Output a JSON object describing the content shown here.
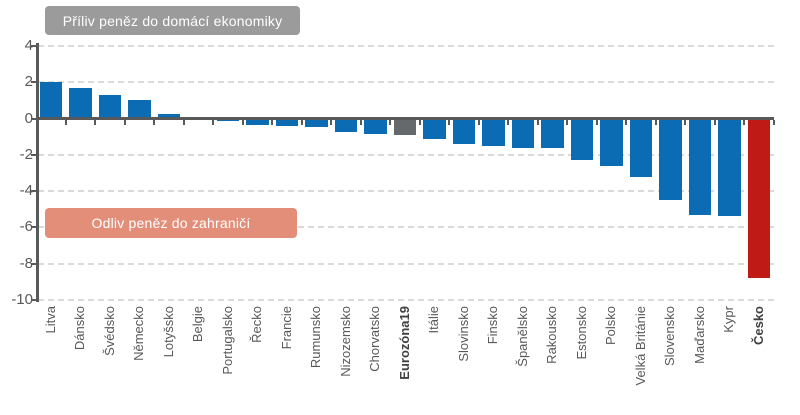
{
  "annotations": {
    "inflow_label": "Příliv peněz do domácí ekonomiky",
    "outflow_label": "Odliv peněz do zahraničí"
  },
  "colors": {
    "bar_blue": "#0b6bb3",
    "bar_gray": "#66696b",
    "bar_red": "#bf1a15",
    "inflow_box_bg": "#9b9b9b",
    "outflow_box_bg": "#e28e79",
    "axis": "#58595b",
    "gridline": "#dadada",
    "label_text": "#58595b",
    "label_text_bold": "#3f4042"
  },
  "chart_data": {
    "type": "bar",
    "title": "",
    "xlabel": "",
    "ylabel": "",
    "categories": [
      "Litva",
      "Dánsko",
      "Švédsko",
      "Německo",
      "Lotyšsko",
      "Belgie",
      "Portugalsko",
      "Řecko",
      "Francie",
      "Rumunsko",
      "Nizozemsko",
      "Chorvatsko",
      "Eurozóna19",
      "Itálie",
      "Slovinsko",
      "Finsko",
      "Španělsko",
      "Rakousko",
      "Estonsko",
      "Polsko",
      "Velká Británie",
      "Slovensko",
      "Maďarsko",
      "Kypr",
      "Česko"
    ],
    "values": [
      2.0,
      1.7,
      1.3,
      1.05,
      0.25,
      -0.1,
      -0.15,
      -0.35,
      -0.4,
      -0.45,
      -0.75,
      -0.85,
      -0.9,
      -1.15,
      -1.4,
      -1.5,
      -1.6,
      -1.65,
      -2.3,
      -2.6,
      -3.2,
      -4.5,
      -5.3,
      -5.35,
      -8.8
    ],
    "bar_colors": [
      "blue",
      "blue",
      "blue",
      "blue",
      "blue",
      "blue",
      "blue",
      "blue",
      "blue",
      "blue",
      "blue",
      "blue",
      "gray",
      "blue",
      "blue",
      "blue",
      "blue",
      "blue",
      "blue",
      "blue",
      "blue",
      "blue",
      "blue",
      "blue",
      "red"
    ],
    "bold_categories": [
      "Eurozóna19",
      "Česko"
    ],
    "yticks": [
      4,
      2,
      0,
      -2,
      -4,
      -6,
      -8,
      -10
    ],
    "ylim": [
      -10,
      4
    ],
    "grid": "horizontal-dashed",
    "legend": "none",
    "annotation_inflow": "Příliv peněz do domácí ekonomiky",
    "annotation_outflow": "Odliv peněz do zahraničí"
  }
}
